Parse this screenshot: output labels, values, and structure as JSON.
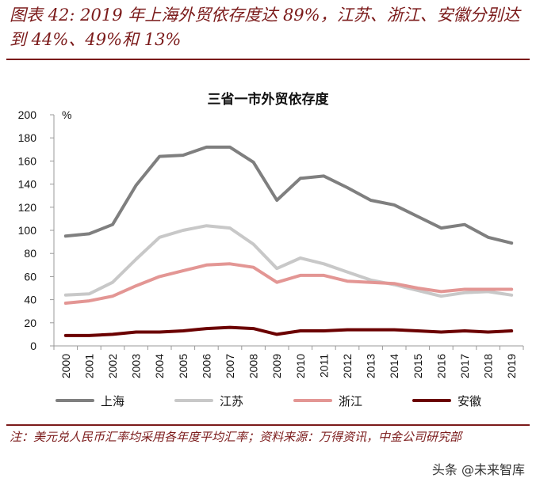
{
  "figure": {
    "title": "图表 42: 2019 年上海外贸依存度达 89%，江苏、浙江、安徽分别达到 44%、49%和 13%",
    "note": "注：美元兑人民币汇率均采用各年度平均汇率；资料来源：万得资讯，中金公司研究部",
    "watermark": "头条 @未来智库"
  },
  "chart_data": {
    "type": "line",
    "title": "三省一市外贸依存度",
    "ylabel": "%",
    "xlabel": "",
    "ylim": [
      0,
      200
    ],
    "yticks": [
      0,
      20,
      40,
      60,
      80,
      100,
      120,
      140,
      160,
      180,
      200
    ],
    "grid": false,
    "legend_position": "bottom",
    "categories": [
      "2000",
      "2001",
      "2002",
      "2003",
      "2004",
      "2005",
      "2006",
      "2007",
      "2008",
      "2009",
      "2010",
      "2011",
      "2012",
      "2013",
      "2014",
      "2015",
      "2016",
      "2017",
      "2018",
      "2019"
    ],
    "series": [
      {
        "name": "上海",
        "color": "#7f7f7f",
        "values": [
          95,
          97,
          105,
          139,
          164,
          165,
          172,
          172,
          159,
          126,
          145,
          147,
          137,
          126,
          122,
          112,
          102,
          105,
          94,
          89
        ]
      },
      {
        "name": "江苏",
        "color": "#c8c8c8",
        "values": [
          44,
          45,
          55,
          75,
          94,
          100,
          104,
          102,
          88,
          67,
          76,
          71,
          64,
          57,
          53,
          48,
          43,
          46,
          47,
          44
        ]
      },
      {
        "name": "浙江",
        "color": "#e39694",
        "values": [
          37,
          39,
          43,
          52,
          60,
          65,
          70,
          71,
          68,
          55,
          61,
          61,
          56,
          55,
          54,
          50,
          47,
          49,
          49,
          49
        ]
      },
      {
        "name": "安徽",
        "color": "#6b0000",
        "values": [
          9,
          9,
          10,
          12,
          12,
          13,
          15,
          16,
          15,
          10,
          13,
          13,
          14,
          14,
          14,
          13,
          12,
          13,
          12,
          13
        ]
      }
    ]
  }
}
